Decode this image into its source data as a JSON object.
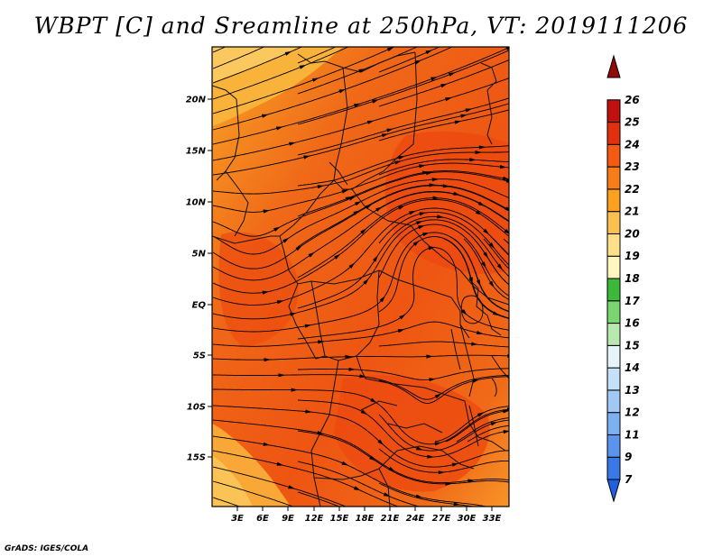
{
  "title": "WBPT [C] and Sreamline at 250hPa, VT: 2019111206",
  "credit": "GrADS: IGES/COLA",
  "map": {
    "variable": "WBPT",
    "units": "C",
    "level": "250hPa",
    "valid_time": "2019111206",
    "lat_ticks": [
      "20N",
      "15N",
      "10N",
      "5N",
      "EQ",
      "5S",
      "10S",
      "15S"
    ],
    "lon_ticks": [
      "3E",
      "6E",
      "9E",
      "12E",
      "15E",
      "18E",
      "21E",
      "24E",
      "27E",
      "30E",
      "33E"
    ]
  },
  "colorbar": {
    "levels": [
      "7",
      "9",
      "11",
      "12",
      "13",
      "14",
      "15",
      "16",
      "17",
      "18",
      "19",
      "20",
      "21",
      "22",
      "23",
      "24",
      "25",
      "26"
    ],
    "colors": [
      "#2060e0",
      "#3a78e8",
      "#5a94ec",
      "#7cb0f0",
      "#a2c8f4",
      "#c6e0f8",
      "#e6f4fa",
      "#b8e8b0",
      "#7ad670",
      "#3cb83a",
      "#fff6c0",
      "#ffe08a",
      "#fcc050",
      "#fca020",
      "#f87c18",
      "#f45a10",
      "#e03010",
      "#c01010",
      "#900a0a"
    ]
  }
}
